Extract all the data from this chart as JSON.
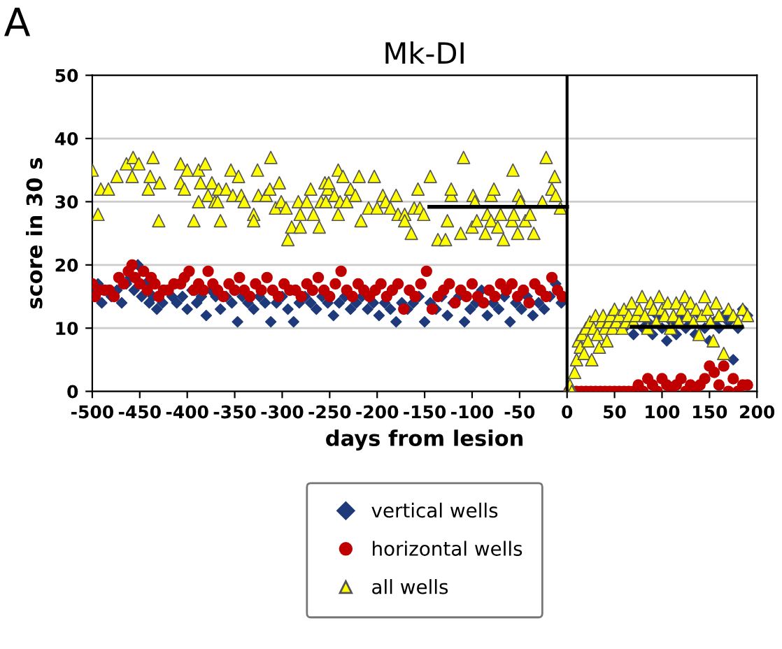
{
  "chart_data": {
    "type": "scatter",
    "title": "Mk-DI",
    "xlabel": "days from lesion",
    "ylabel": "score in 30 s",
    "annotations": [
      "A"
    ],
    "xlim": [
      -500,
      200
    ],
    "xticks": [
      -500,
      -450,
      -400,
      -350,
      -300,
      -250,
      -200,
      -150,
      -100,
      -50,
      0,
      50,
      100,
      150,
      200
    ],
    "ylim": [
      0,
      50
    ],
    "yticks": [
      0,
      10,
      20,
      30,
      40,
      50
    ],
    "grid": "y",
    "legend": "bottom",
    "ref_lines": [
      {
        "axis": "x",
        "value": 0,
        "color": "#000000"
      }
    ],
    "series": [
      {
        "name": "vertical wells",
        "color": "#1f3a7a",
        "marker": "diamond",
        "x": [
          -498,
          -494,
          -490,
          -485,
          -480,
          -474,
          -469,
          -464,
          -460,
          -456,
          -452,
          -448,
          -444,
          -440,
          -436,
          -432,
          -426,
          -421,
          -416,
          -411,
          -405,
          -400,
          -395,
          -390,
          -385,
          -380,
          -375,
          -370,
          -365,
          -359,
          -353,
          -347,
          -342,
          -336,
          -330,
          -324,
          -318,
          -312,
          -306,
          -300,
          -294,
          -288,
          -282,
          -276,
          -270,
          -264,
          -258,
          -252,
          -246,
          -240,
          -234,
          -228,
          -222,
          -216,
          -210,
          -204,
          -198,
          -192,
          -186,
          -180,
          -174,
          -168,
          -162,
          -156,
          -150,
          -144,
          -138,
          -132,
          -126,
          -120,
          -114,
          -108,
          -102,
          -96,
          -90,
          -84,
          -78,
          -72,
          -66,
          -60,
          -54,
          -48,
          -42,
          -36,
          -30,
          -24,
          -18,
          -12,
          -6,
          60,
          65,
          70,
          75,
          80,
          85,
          90,
          95,
          100,
          105,
          110,
          115,
          120,
          125,
          130,
          135,
          140,
          145,
          150,
          155,
          160,
          165,
          170,
          175,
          180,
          185,
          190
        ],
        "values": [
          16,
          17,
          14,
          null,
          15,
          16,
          14,
          17,
          18,
          16,
          20,
          15,
          17,
          14,
          15,
          13,
          14,
          null,
          15,
          14,
          15,
          13,
          16,
          14,
          15,
          12,
          16,
          15,
          13,
          15,
          14,
          11,
          15,
          14,
          13,
          15,
          14,
          11,
          14,
          15,
          13,
          11,
          14,
          15,
          14,
          13,
          15,
          14,
          12,
          14,
          15,
          13,
          14,
          15,
          13,
          14,
          12,
          14,
          13,
          11,
          14,
          13,
          14,
          15,
          11,
          14,
          13,
          15,
          12,
          14,
          15,
          11,
          13,
          14,
          16,
          12,
          14,
          13,
          15,
          11,
          14,
          13,
          15,
          12,
          14,
          13,
          15,
          17,
          14,
          10,
          null,
          9,
          null,
          10,
          11,
          9,
          12,
          10,
          8,
          11,
          9,
          12,
          10,
          11,
          9,
          12,
          10,
          8,
          11,
          10,
          12,
          11,
          5,
          10,
          13,
          12
        ]
      },
      {
        "name": "horizontal wells",
        "color": "#c00000",
        "marker": "circle",
        "x": [
          -500,
          -497,
          -493,
          -487,
          -482,
          -477,
          -472,
          -467,
          -462,
          -458,
          -455,
          -450,
          -446,
          -442,
          -438,
          -434,
          -430,
          -425,
          -420,
          -414,
          -407,
          -403,
          -398,
          -393,
          -388,
          -383,
          -378,
          -373,
          -368,
          -362,
          -356,
          -350,
          -345,
          -340,
          -334,
          -328,
          -322,
          -316,
          -310,
          -304,
          -298,
          -292,
          -286,
          -280,
          -274,
          -268,
          -262,
          -256,
          -250,
          -244,
          -238,
          -232,
          -226,
          -220,
          -214,
          -208,
          -202,
          -196,
          -190,
          -184,
          -178,
          -172,
          -166,
          -160,
          -154,
          -148,
          -142,
          -136,
          -130,
          -124,
          -118,
          -112,
          -106,
          -100,
          -94,
          -88,
          -82,
          -76,
          -70,
          -64,
          -58,
          -52,
          -46,
          -40,
          -34,
          -28,
          -22,
          -16,
          -10,
          -5,
          2,
          6,
          10,
          15,
          20,
          25,
          30,
          35,
          40,
          45,
          50,
          55,
          60,
          65,
          70,
          75,
          80,
          85,
          90,
          95,
          100,
          105,
          110,
          115,
          120,
          125,
          130,
          135,
          140,
          145,
          150,
          155,
          160,
          165,
          170,
          175,
          180,
          185,
          190
        ],
        "values": [
          17,
          15,
          16,
          16,
          16,
          15,
          18,
          17,
          19,
          20,
          18,
          17,
          19,
          16,
          18,
          17,
          15,
          16,
          16,
          17,
          17,
          18,
          19,
          16,
          17,
          16,
          19,
          17,
          16,
          15,
          17,
          16,
          18,
          16,
          15,
          17,
          16,
          18,
          16,
          15,
          17,
          16,
          16,
          15,
          17,
          16,
          18,
          16,
          15,
          17,
          19,
          16,
          15,
          17,
          16,
          15,
          16,
          17,
          15,
          16,
          17,
          13,
          16,
          15,
          17,
          19,
          13,
          15,
          16,
          17,
          14,
          16,
          15,
          17,
          15,
          14,
          16,
          15,
          17,
          16,
          17,
          15,
          16,
          14,
          17,
          16,
          15,
          18,
          16,
          15,
          0,
          null,
          0,
          0,
          0,
          0,
          0,
          0,
          0,
          0,
          0,
          0,
          0,
          0,
          0,
          1,
          0,
          2,
          1,
          0,
          2,
          1,
          0,
          1,
          2,
          0,
          1,
          0,
          1,
          2,
          4,
          3,
          1,
          4,
          0,
          2,
          0,
          1,
          1
        ]
      },
      {
        "name": "all wells",
        "color": "#ffff00",
        "marker": "triangle",
        "x": [
          -500,
          -494,
          -491,
          -483,
          -474,
          -464,
          -458,
          -457,
          -451,
          -441,
          -439,
          -436,
          -430,
          -429,
          -407,
          -407,
          -403,
          -400,
          -393,
          -388,
          -388,
          -386,
          -381,
          -378,
          -374,
          -371,
          -368,
          -367,
          -365,
          -359,
          -354,
          -352,
          -346,
          -343,
          -340,
          -330,
          -330,
          -326,
          -325,
          -317,
          -313,
          -312,
          -307,
          -303,
          -301,
          -296,
          -294,
          -290,
          -283,
          -281,
          -281,
          -274,
          -270,
          -267,
          -261,
          -259,
          -255,
          -254,
          -252,
          -251,
          -245,
          -241,
          -241,
          -239,
          -236,
          -232,
          -228,
          -223,
          -219,
          -217,
          -209,
          -203,
          -200,
          -194,
          -191,
          -186,
          -180,
          -178,
          -171,
          -171,
          -164,
          -161,
          -157,
          -155,
          -151,
          -144,
          -136,
          -128,
          -126,
          -122,
          -122,
          -112,
          -109,
          -100,
          -99,
          -97,
          -95,
          -86,
          -84,
          -80,
          -80,
          -77,
          -73,
          -70,
          -67,
          -58,
          -57,
          -56,
          -52,
          -51,
          -49,
          -44,
          -39,
          -35,
          -26,
          -22,
          -16,
          -13,
          -12,
          -7,
          1,
          3,
          5,
          8,
          10,
          12,
          14,
          16,
          18,
          20,
          22,
          24,
          26,
          28,
          30,
          32,
          34,
          36,
          38,
          40,
          42,
          44,
          46,
          48,
          50,
          52,
          55,
          58,
          60,
          62,
          65,
          68,
          70,
          73,
          76,
          79,
          82,
          85,
          88,
          91,
          94,
          97,
          100,
          103,
          106,
          109,
          112,
          115,
          118,
          121,
          124,
          127,
          130,
          133,
          136,
          139,
          142,
          145,
          148,
          151,
          154,
          157,
          160,
          165,
          170,
          175,
          180,
          185,
          190
        ],
        "values": [
          35,
          28,
          32,
          32,
          34,
          36,
          34,
          37,
          36,
          32,
          34,
          37,
          27,
          33,
          36,
          33,
          32,
          35,
          27,
          35,
          30,
          33,
          36,
          31,
          33,
          30,
          30,
          32,
          27,
          32,
          35,
          31,
          34,
          31,
          30,
          28,
          27,
          35,
          31,
          31,
          32,
          37,
          29,
          33,
          30,
          29,
          24,
          26,
          30,
          28,
          26,
          30,
          32,
          28,
          26,
          30,
          33,
          30,
          32,
          33,
          31,
          28,
          35,
          30,
          34,
          30,
          32,
          31,
          34,
          27,
          29,
          34,
          29,
          31,
          30,
          29,
          31,
          28,
          28,
          27,
          25,
          29,
          32,
          29,
          28,
          34,
          24,
          24,
          27,
          31,
          32,
          25,
          37,
          26,
          31,
          30,
          27,
          25,
          28,
          31,
          27,
          32,
          26,
          28,
          24,
          27,
          35,
          28,
          25,
          31,
          30,
          27,
          28,
          25,
          30,
          37,
          32,
          34,
          31,
          29,
          null,
          1,
          0,
          3,
          5,
          8,
          7,
          9,
          6,
          10,
          8,
          11,
          5,
          10,
          12,
          9,
          7,
          11,
          12,
          10,
          8,
          11,
          12,
          10,
          13,
          11,
          12,
          10,
          13,
          11,
          12,
          14,
          11,
          12,
          13,
          15,
          12,
          10,
          14,
          13,
          11,
          15,
          13,
          12,
          14,
          10,
          12,
          14,
          11,
          13,
          15,
          12,
          14,
          11,
          13,
          9,
          12,
          15,
          13,
          11,
          8,
          14,
          12,
          6,
          13,
          12,
          11,
          13,
          12
        ]
      },
      {
        "type": "line",
        "color": "#000000",
        "x": [
          -145,
          0
        ],
        "values": [
          29.2,
          29.2
        ]
      },
      {
        "type": "line",
        "color": "#000000",
        "x": [
          68,
          184
        ],
        "values": [
          10.2,
          10.2
        ]
      }
    ]
  }
}
